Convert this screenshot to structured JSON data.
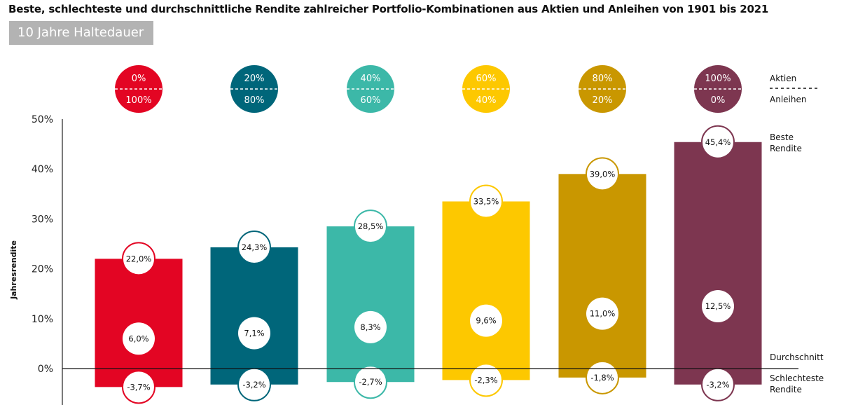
{
  "chart_data": {
    "type": "bar",
    "title": "Beste, schlechteste und durchschnittliche Rendite zahlreicher Portfolio-Kombinationen aus Aktien und Anleihen von 1901 bis 2021",
    "subtitle": "10 Jahre Haltedauer",
    "ylabel": "Jahresrendite",
    "ylim": [
      -5,
      50
    ],
    "yticks": [
      {
        "v": 50,
        "label": "50%"
      },
      {
        "v": 40,
        "label": "40%"
      },
      {
        "v": 30,
        "label": "30%"
      },
      {
        "v": 20,
        "label": "20%"
      },
      {
        "v": 10,
        "label": "10%"
      },
      {
        "v": 0,
        "label": "0%"
      }
    ],
    "legend": {
      "stocks": "Aktien",
      "bonds": "Anleihen",
      "best": [
        "Beste",
        "Rendite"
      ],
      "average": "Durchschnitt",
      "worst": [
        "Schlechteste",
        "Rendite"
      ]
    },
    "series": [
      {
        "stocks": "0%",
        "bonds": "100%",
        "best": 22.0,
        "avg": 6.0,
        "worst": -3.7,
        "best_label": "22,0%",
        "avg_label": "6,0%",
        "worst_label": "-3,7%",
        "color": "#e30523"
      },
      {
        "stocks": "20%",
        "bonds": "80%",
        "best": 24.3,
        "avg": 7.1,
        "worst": -3.2,
        "best_label": "24,3%",
        "avg_label": "7,1%",
        "worst_label": "-3,2%",
        "color": "#00667a"
      },
      {
        "stocks": "40%",
        "bonds": "60%",
        "best": 28.5,
        "avg": 8.3,
        "worst": -2.7,
        "best_label": "28,5%",
        "avg_label": "8,3%",
        "worst_label": "-2,7%",
        "color": "#3cb8a8"
      },
      {
        "stocks": "60%",
        "bonds": "40%",
        "best": 33.5,
        "avg": 9.6,
        "worst": -2.3,
        "best_label": "33,5%",
        "avg_label": "9,6%",
        "worst_label": "-2,3%",
        "color": "#fdc800"
      },
      {
        "stocks": "80%",
        "bonds": "20%",
        "best": 39.0,
        "avg": 11.0,
        "worst": -1.8,
        "best_label": "39,0%",
        "avg_label": "11,0%",
        "worst_label": "-1,8%",
        "color": "#c99700"
      },
      {
        "stocks": "100%",
        "bonds": "0%",
        "best": 45.4,
        "avg": 12.5,
        "worst": -3.2,
        "best_label": "45,4%",
        "avg_label": "12,5%",
        "worst_label": "-3,2%",
        "color": "#7d3650"
      }
    ]
  }
}
